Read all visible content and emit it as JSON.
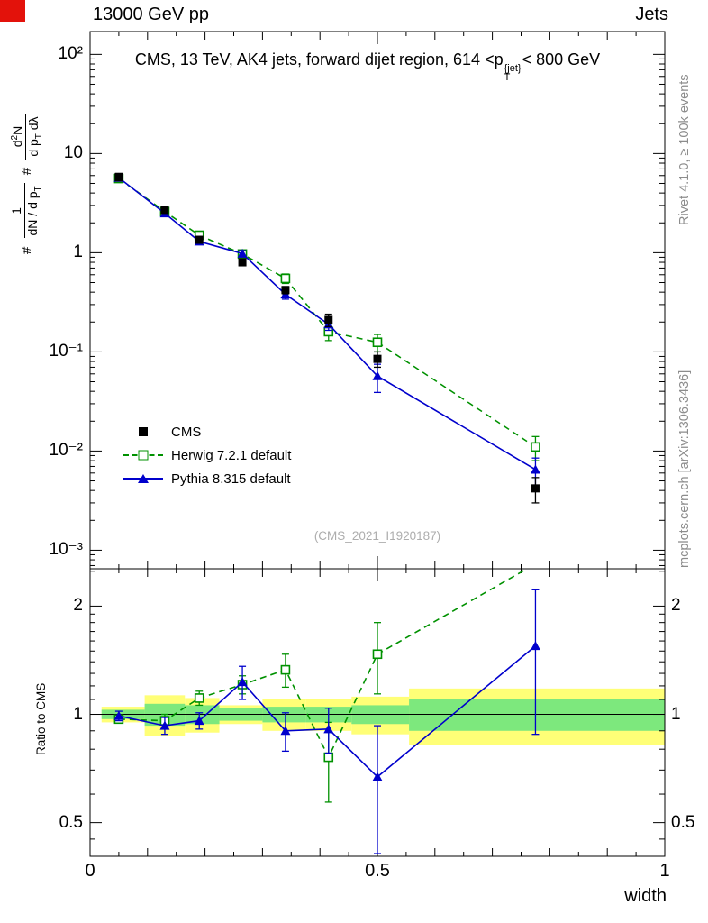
{
  "header": {
    "left": "13000 GeV pp",
    "right": "Jets"
  },
  "title": {
    "prefix": "CMS, 13 TeV, AK4 jets, forward dijet region, 614 <p",
    "p_sup": "{jet}",
    "p_sub": "T",
    "suffix": "< 800 GeV"
  },
  "ylabel": {
    "hash1": "#",
    "f1num": "1",
    "f1den_a": "dN / d p",
    "f1den_sub": "T",
    "hash2": "#",
    "f2num_a": "d",
    "f2num_sup": "2",
    "f2num_b": "N",
    "f2den_a": "d p",
    "f2den_sub": "T",
    "f2den_b": " dλ"
  },
  "side_notes": {
    "right_top": "Rivet 4.1.0, ≥ 100k events",
    "right_bottom": "mcplots.cern.ch [arXiv:1306.3436]"
  },
  "watermark": "(CMS_2021_I1920187)",
  "legend": {
    "items": [
      {
        "label": "CMS",
        "marker": "square-filled",
        "line": "none",
        "color": "#000000"
      },
      {
        "label": "Herwig 7.2.1 default",
        "marker": "square-open",
        "line": "dashed",
        "color": "#009100"
      },
      {
        "label": "Pythia 8.315 default",
        "marker": "triangle-filled",
        "line": "solid",
        "color": "#0000cc"
      }
    ]
  },
  "chart_data": {
    "type": "line",
    "xlabel": "width",
    "xlim": [
      0,
      1
    ],
    "xticks": [
      {
        "v": 0,
        "label": "0"
      },
      {
        "v": 0.5,
        "label": "0.5"
      },
      {
        "v": 1,
        "label": "1"
      }
    ],
    "x": [
      0.05,
      0.13,
      0.19,
      0.265,
      0.34,
      0.415,
      0.5,
      0.775
    ],
    "main_panel": {
      "yscale": "log",
      "ylim": [
        0.00065,
        170
      ],
      "yticks": [
        {
          "v": 100,
          "label": "10²"
        },
        {
          "v": 10,
          "label": "10"
        },
        {
          "v": 1,
          "label": "1"
        },
        {
          "v": 0.1,
          "label": "10⁻¹"
        },
        {
          "v": 0.01,
          "label": "10⁻²"
        },
        {
          "v": 0.001,
          "label": "10⁻³"
        }
      ],
      "series": [
        {
          "name": "CMS",
          "color": "#000000",
          "marker": "square-filled",
          "line": "none",
          "y": [
            5.8,
            2.7,
            1.35,
            0.8,
            0.42,
            0.21,
            0.085,
            0.0042
          ],
          "yerr": [
            0.5,
            0.2,
            0.1,
            0.06,
            0.035,
            0.03,
            0.015,
            0.0012
          ]
        },
        {
          "name": "Herwig 7.2.1 default",
          "color": "#009100",
          "marker": "square-open",
          "line": "dashed",
          "y": [
            5.6,
            2.6,
            1.5,
            0.97,
            0.55,
            0.16,
            0.125,
            0.011
          ],
          "yerr": [
            0.4,
            0.15,
            0.1,
            0.07,
            0.06,
            0.03,
            0.025,
            0.003
          ]
        },
        {
          "name": "Pythia 8.315 default",
          "color": "#0000cc",
          "marker": "triangle-filled",
          "line": "solid",
          "y": [
            5.7,
            2.5,
            1.3,
            0.98,
            0.38,
            0.19,
            0.057,
            0.0065
          ],
          "yerr": [
            0.35,
            0.12,
            0.08,
            0.07,
            0.04,
            0.025,
            0.018,
            0.002
          ]
        }
      ]
    },
    "ratio_panel": {
      "ylabel": "Ratio to CMS",
      "yscale": "log",
      "ylim": [
        0.403,
        2.54
      ],
      "yticks": [
        {
          "v": 0.5,
          "label": "0.5"
        },
        {
          "v": 1,
          "label": "1"
        },
        {
          "v": 2,
          "label": "2"
        }
      ],
      "bands": [
        {
          "x0": 0.02,
          "x1": 0.095,
          "yellow": 0.05,
          "green": 0.03
        },
        {
          "x0": 0.095,
          "x1": 0.165,
          "yellow": 0.13,
          "green": 0.07
        },
        {
          "x0": 0.165,
          "x1": 0.225,
          "yellow": 0.11,
          "green": 0.06
        },
        {
          "x0": 0.225,
          "x1": 0.3,
          "yellow": 0.06,
          "green": 0.04
        },
        {
          "x0": 0.3,
          "x1": 0.375,
          "yellow": 0.1,
          "green": 0.05
        },
        {
          "x0": 0.375,
          "x1": 0.455,
          "yellow": 0.1,
          "green": 0.05
        },
        {
          "x0": 0.455,
          "x1": 0.555,
          "yellow": 0.12,
          "green": 0.06
        },
        {
          "x0": 0.555,
          "x1": 1.0,
          "yellow": 0.18,
          "green": 0.1
        }
      ],
      "series": [
        {
          "name": "Herwig 7.2.1 default",
          "color": "#009100",
          "marker": "square-open",
          "line": "dashed",
          "y": [
            0.97,
            0.96,
            1.11,
            1.21,
            1.33,
            0.76,
            1.47,
            2.62
          ],
          "yerr": [
            0.025,
            0.04,
            0.05,
            0.07,
            0.14,
            0.19,
            0.33,
            0
          ]
        },
        {
          "name": "Pythia 8.315 default",
          "color": "#0000cc",
          "marker": "triangle-filled",
          "line": "solid",
          "y": [
            0.99,
            0.93,
            0.96,
            1.23,
            0.9,
            0.91,
            0.67,
            1.55
          ],
          "yerr": [
            0.03,
            0.05,
            0.05,
            0.13,
            0.11,
            0.13,
            0.26,
            0.67
          ]
        }
      ]
    },
    "band_colors": {
      "yellow": "#ffff77",
      "green": "#7de87d"
    }
  }
}
